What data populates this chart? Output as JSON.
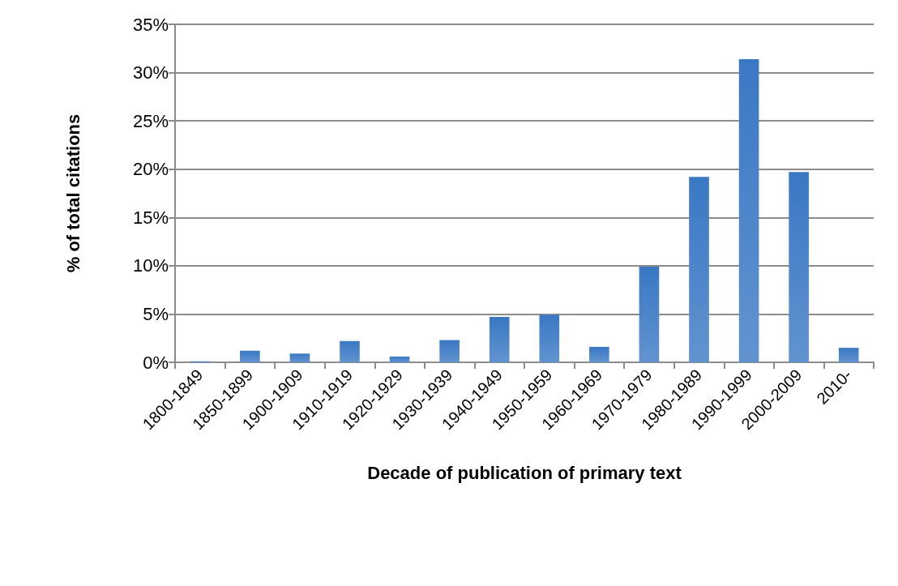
{
  "chart_data": {
    "type": "bar",
    "xlabel": "Decade of publication of primary text",
    "ylabel": "% of total citations",
    "categories": [
      "1800-1849",
      "1850-1899",
      "1900-1909",
      "1910-1919",
      "1920-1929",
      "1930-1939",
      "1940-1949",
      "1950-1959",
      "1960-1969",
      "1970-1979",
      "1980-1989",
      "1990-1999",
      "2000-2009",
      "2010-"
    ],
    "values": [
      0.1,
      1.2,
      0.9,
      2.2,
      0.6,
      2.3,
      4.7,
      4.9,
      1.6,
      9.9,
      19.2,
      31.4,
      19.7,
      1.5
    ],
    "color": "#3a78c4",
    "ylim": [
      0,
      35
    ],
    "yticks": [
      {
        "value": 0,
        "label": "0%"
      },
      {
        "value": 5,
        "label": "5%"
      },
      {
        "value": 10,
        "label": "10%"
      },
      {
        "value": 15,
        "label": "15%"
      },
      {
        "value": 20,
        "label": "20%"
      },
      {
        "value": 25,
        "label": "25%"
      },
      {
        "value": 30,
        "label": "30%"
      },
      {
        "value": 35,
        "label": "35%"
      }
    ],
    "grid": true
  }
}
